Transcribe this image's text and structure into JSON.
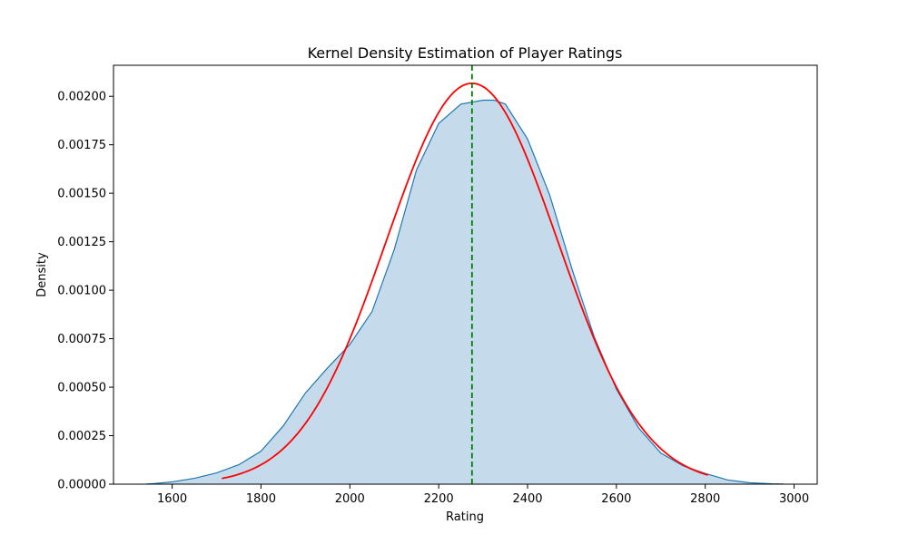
{
  "chart_data": {
    "type": "area",
    "title": "Kernel Density Estimation of Player Ratings",
    "xlabel": "Rating",
    "ylabel": "Density",
    "xlim": [
      1468,
      3052
    ],
    "ylim": [
      0,
      0.00216
    ],
    "x_ticks": [
      1600,
      1800,
      2000,
      2200,
      2400,
      2600,
      2800,
      3000
    ],
    "y_ticks": [
      0,
      0.00025,
      0.0005,
      0.00075,
      0.001,
      0.00125,
      0.0015,
      0.00175,
      0.002
    ],
    "y_tick_labels": [
      "0.00000",
      "0.00025",
      "0.00050",
      "0.00075",
      "0.00100",
      "0.00125",
      "0.00150",
      "0.00175",
      "0.00200"
    ],
    "grid": false,
    "colors": {
      "kde_line": "#1f77b4",
      "kde_fill": "#c5dbec",
      "normal_fit": "#ff0000",
      "mean_line": "#008000"
    },
    "series": [
      {
        "kind": "kde_area",
        "x": [
          1542,
          1560,
          1600,
          1650,
          1700,
          1750,
          1800,
          1850,
          1900,
          1950,
          2000,
          2050,
          2100,
          2150,
          2200,
          2250,
          2300,
          2325,
          2350,
          2400,
          2450,
          2500,
          2550,
          2600,
          2650,
          2700,
          2750,
          2800,
          2850,
          2900,
          2950,
          2976
        ],
        "y": [
          1e-06,
          3e-06,
          1.2e-05,
          3e-05,
          5.8e-05,
          0.0001,
          0.00017,
          0.0003,
          0.00047,
          0.0006,
          0.00072,
          0.00089,
          0.00121,
          0.00162,
          0.00186,
          0.00196,
          0.00198,
          0.00198,
          0.00196,
          0.00178,
          0.00149,
          0.00111,
          0.00076,
          0.00049,
          0.00029,
          0.00016,
          9.5e-05,
          5.5e-05,
          2.2e-05,
          7e-06,
          2e-06,
          1e-06
        ]
      },
      {
        "kind": "normal_fit",
        "mean": 2275,
        "std": 193,
        "x_range": [
          1712,
          2806
        ]
      },
      {
        "kind": "mean_line",
        "x": 2275
      }
    ]
  }
}
